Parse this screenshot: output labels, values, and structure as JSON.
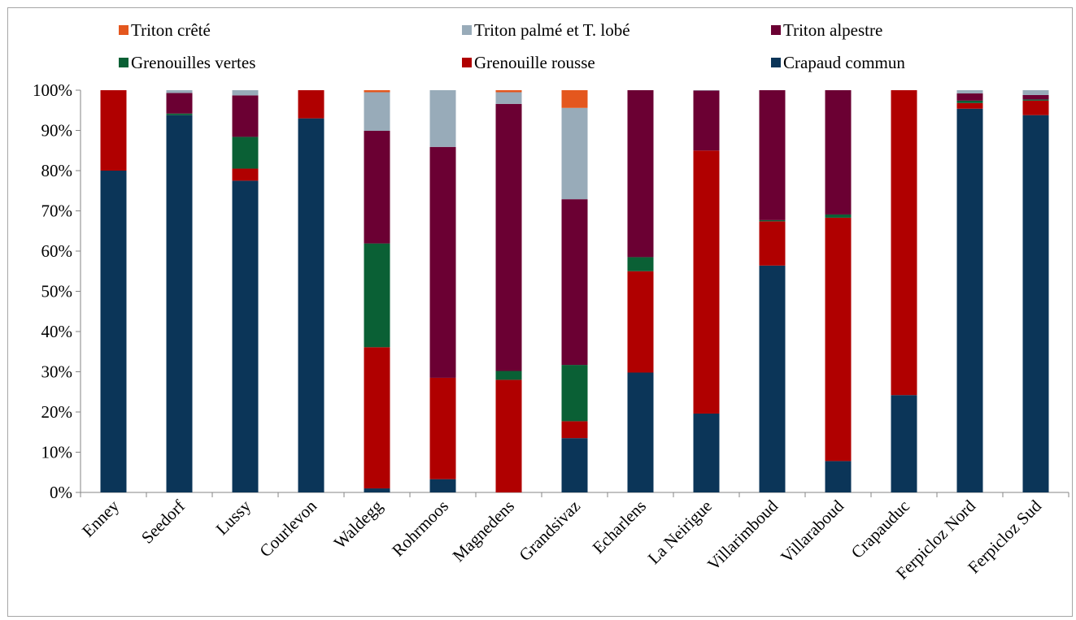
{
  "chart_data": {
    "type": "bar",
    "stacked": true,
    "percent": true,
    "ylim": [
      0,
      100
    ],
    "yticks": [
      "0%",
      "10%",
      "20%",
      "30%",
      "40%",
      "50%",
      "60%",
      "70%",
      "80%",
      "90%",
      "100%"
    ],
    "grid": false,
    "legend_position": "top",
    "categories": [
      "Enney",
      "Seedorf",
      "Lussy",
      "Courlevon",
      "Waldegg",
      "Rohrmoos",
      "Magnedens",
      "Grandsivaz",
      "Echarlens",
      "La Neirigue",
      "Villarimboud",
      "Villaraboud",
      "Crapauduc",
      "Ferpicloz Nord",
      "Ferpicloz Sud"
    ],
    "series": [
      {
        "name": "Crapaud commun",
        "color": "#0b3558",
        "values": [
          80,
          93.8,
          77.5,
          93,
          1,
          3.3,
          0,
          13.5,
          29.8,
          19.6,
          56.4,
          7.8,
          24.2,
          95.4,
          93.8
        ]
      },
      {
        "name": "Grenouille rousse",
        "color": "#b00000",
        "values": [
          20,
          0,
          3,
          7,
          35.1,
          25.2,
          28,
          4.2,
          25.2,
          65.4,
          11,
          60.5,
          75.8,
          1.4,
          3.6
        ]
      },
      {
        "name": "Grenouilles vertes",
        "color": "#0a6035",
        "values": [
          0,
          0.4,
          7.9,
          0,
          25.8,
          0,
          2.2,
          14,
          3.5,
          0,
          0.3,
          0.8,
          0,
          0.6,
          0.3
        ]
      },
      {
        "name": "Triton alpestre",
        "color": "#6b0033",
        "values": [
          0,
          5.1,
          10.3,
          0,
          28,
          57.4,
          66.4,
          41.2,
          41.5,
          14.9,
          32.3,
          30.9,
          0,
          1.8,
          1.1
        ]
      },
      {
        "name": "Triton palmé et T. lobé",
        "color": "#98abb9",
        "values": [
          0,
          0.7,
          1.3,
          0,
          9.6,
          14.1,
          2.9,
          22.7,
          0,
          0.1,
          0,
          0,
          0,
          0.8,
          1.2
        ]
      },
      {
        "name": "Triton crêté",
        "color": "#e4571e",
        "values": [
          0,
          0,
          0,
          0,
          0.5,
          0,
          0.5,
          4.4,
          0,
          0,
          0,
          0,
          0,
          0,
          0
        ]
      }
    ],
    "legend_order": [
      "Triton crêté",
      "Triton palmé et T. lobé",
      "Triton alpestre",
      "Grenouilles vertes",
      "Grenouille rousse",
      "Crapaud commun"
    ]
  }
}
